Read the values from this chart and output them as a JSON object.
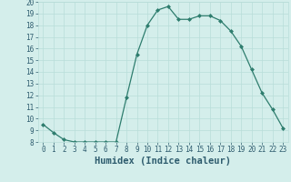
{
  "x": [
    0,
    1,
    2,
    3,
    4,
    5,
    6,
    7,
    8,
    9,
    10,
    11,
    12,
    13,
    14,
    15,
    16,
    17,
    18,
    19,
    20,
    21,
    22,
    23
  ],
  "y": [
    9.5,
    8.8,
    8.2,
    8.0,
    8.0,
    8.0,
    8.0,
    8.0,
    11.8,
    15.5,
    18.0,
    19.3,
    19.6,
    18.5,
    18.5,
    18.8,
    18.8,
    18.4,
    17.5,
    16.2,
    14.2,
    12.2,
    10.8,
    9.2
  ],
  "line_color": "#2e7d6e",
  "bg_color": "#d4eeeb",
  "grid_color": "#b8ddd9",
  "xlabel": "Humidex (Indice chaleur)",
  "ylim": [
    8,
    20
  ],
  "xlim": [
    -0.5,
    23.5
  ],
  "yticks": [
    8,
    9,
    10,
    11,
    12,
    13,
    14,
    15,
    16,
    17,
    18,
    19,
    20
  ],
  "xticks": [
    0,
    1,
    2,
    3,
    4,
    5,
    6,
    7,
    8,
    9,
    10,
    11,
    12,
    13,
    14,
    15,
    16,
    17,
    18,
    19,
    20,
    21,
    22,
    23
  ],
  "font_color": "#2e5c6e",
  "tick_fontsize": 5.5,
  "xlabel_fontsize": 7.5
}
